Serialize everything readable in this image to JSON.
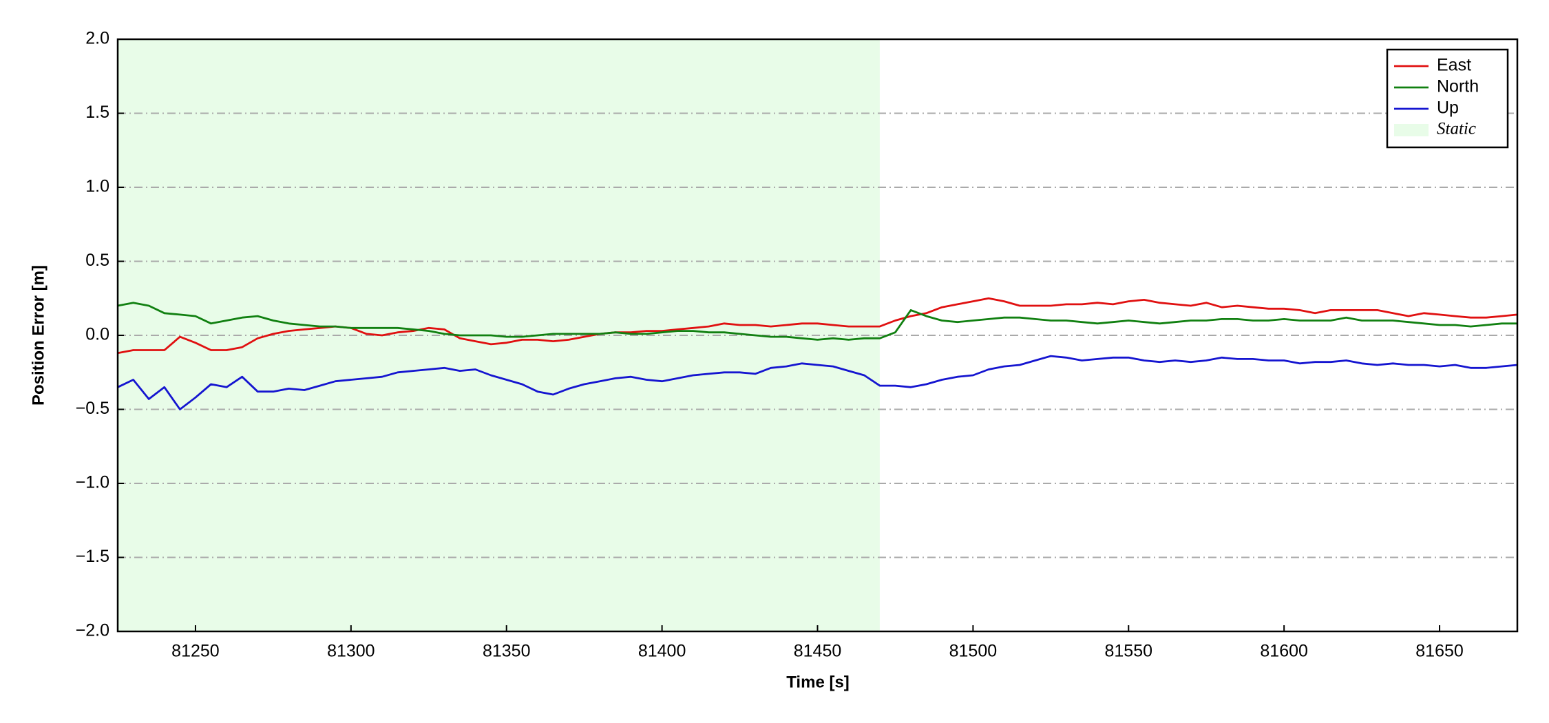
{
  "chart_data": {
    "type": "line",
    "x_label": "Time [s]",
    "y_label": "Position Error [m]",
    "xlim": [
      81225,
      81675
    ],
    "xticks": [
      81250,
      81300,
      81350,
      81400,
      81450,
      81500,
      81550,
      81600,
      81650
    ],
    "ylim": [
      -2,
      2
    ],
    "yticks": [
      {
        "value": -2,
        "label": "−2.0"
      },
      {
        "value": -1.5,
        "label": "−1.5"
      },
      {
        "value": -1,
        "label": "−1.0"
      },
      {
        "value": -0.5,
        "label": "−0.5"
      },
      {
        "value": 0,
        "label": "0.0"
      },
      0.5,
      {
        "value": 1,
        "label": "1.0"
      },
      1.5,
      {
        "value": 2,
        "label": "2.0"
      }
    ],
    "grid": true,
    "legend": "upper right",
    "shaded_region": {
      "name": "Static",
      "color": "#e8fce8",
      "xrange": [
        81225,
        81470
      ]
    },
    "x": [
      81225,
      81230,
      81235,
      81240,
      81245,
      81250,
      81255,
      81260,
      81265,
      81270,
      81275,
      81280,
      81285,
      81290,
      81295,
      81300,
      81305,
      81310,
      81315,
      81320,
      81325,
      81330,
      81335,
      81340,
      81345,
      81350,
      81355,
      81360,
      81365,
      81370,
      81375,
      81380,
      81385,
      81390,
      81395,
      81400,
      81405,
      81410,
      81415,
      81420,
      81425,
      81430,
      81435,
      81440,
      81445,
      81450,
      81455,
      81460,
      81465,
      81470,
      81475,
      81480,
      81485,
      81490,
      81495,
      81500,
      81505,
      81510,
      81515,
      81520,
      81525,
      81530,
      81535,
      81540,
      81545,
      81550,
      81555,
      81560,
      81565,
      81570,
      81575,
      81580,
      81585,
      81590,
      81595,
      81600,
      81605,
      81610,
      81615,
      81620,
      81625,
      81630,
      81635,
      81640,
      81645,
      81650,
      81655,
      81660,
      81665,
      81670,
      81675
    ],
    "series": [
      {
        "name": "East",
        "color": "#e01010",
        "values": [
          -0.12,
          -0.1,
          -0.1,
          -0.1,
          -0.01,
          -0.05,
          -0.1,
          -0.1,
          -0.08,
          -0.02,
          0.01,
          0.03,
          0.04,
          0.05,
          0.06,
          0.05,
          0.01,
          0.0,
          0.02,
          0.03,
          0.05,
          0.04,
          -0.02,
          -0.04,
          -0.06,
          -0.05,
          -0.03,
          -0.03,
          -0.04,
          -0.03,
          -0.01,
          0.01,
          0.02,
          0.02,
          0.03,
          0.03,
          0.04,
          0.05,
          0.06,
          0.08,
          0.07,
          0.07,
          0.06,
          0.07,
          0.08,
          0.08,
          0.07,
          0.06,
          0.06,
          0.06,
          0.1,
          0.13,
          0.15,
          0.19,
          0.21,
          0.23,
          0.25,
          0.23,
          0.2,
          0.2,
          0.2,
          0.21,
          0.21,
          0.22,
          0.21,
          0.23,
          0.24,
          0.22,
          0.21,
          0.2,
          0.22,
          0.19,
          0.2,
          0.19,
          0.18,
          0.18,
          0.17,
          0.15,
          0.17,
          0.17,
          0.17,
          0.17,
          0.15,
          0.13,
          0.15,
          0.14,
          0.13,
          0.12,
          0.12,
          0.13,
          0.14
        ]
      },
      {
        "name": "North",
        "color": "#118011",
        "values": [
          0.2,
          0.22,
          0.2,
          0.15,
          0.14,
          0.13,
          0.08,
          0.1,
          0.12,
          0.13,
          0.1,
          0.08,
          0.07,
          0.06,
          0.06,
          0.05,
          0.05,
          0.05,
          0.05,
          0.04,
          0.03,
          0.01,
          0.0,
          0.0,
          0.0,
          -0.01,
          -0.01,
          0.0,
          0.01,
          0.01,
          0.01,
          0.01,
          0.02,
          0.01,
          0.01,
          0.02,
          0.03,
          0.03,
          0.02,
          0.02,
          0.01,
          0.0,
          -0.01,
          -0.01,
          -0.02,
          -0.03,
          -0.02,
          -0.03,
          -0.02,
          -0.02,
          0.02,
          0.17,
          0.13,
          0.1,
          0.09,
          0.1,
          0.11,
          0.12,
          0.12,
          0.11,
          0.1,
          0.1,
          0.09,
          0.08,
          0.09,
          0.1,
          0.09,
          0.08,
          0.09,
          0.1,
          0.1,
          0.11,
          0.11,
          0.1,
          0.1,
          0.11,
          0.1,
          0.1,
          0.1,
          0.12,
          0.1,
          0.1,
          0.1,
          0.09,
          0.08,
          0.07,
          0.07,
          0.06,
          0.07,
          0.08,
          0.08
        ]
      },
      {
        "name": "Up",
        "color": "#1515d0",
        "values": [
          -0.35,
          -0.3,
          -0.43,
          -0.35,
          -0.5,
          -0.42,
          -0.33,
          -0.35,
          -0.28,
          -0.38,
          -0.38,
          -0.36,
          -0.37,
          -0.34,
          -0.31,
          -0.3,
          -0.29,
          -0.28,
          -0.25,
          -0.24,
          -0.23,
          -0.22,
          -0.24,
          -0.23,
          -0.27,
          -0.3,
          -0.33,
          -0.38,
          -0.4,
          -0.36,
          -0.33,
          -0.31,
          -0.29,
          -0.28,
          -0.3,
          -0.31,
          -0.29,
          -0.27,
          -0.26,
          -0.25,
          -0.25,
          -0.26,
          -0.22,
          -0.21,
          -0.19,
          -0.2,
          -0.21,
          -0.24,
          -0.27,
          -0.34,
          -0.34,
          -0.35,
          -0.33,
          -0.3,
          -0.28,
          -0.27,
          -0.23,
          -0.21,
          -0.2,
          -0.17,
          -0.14,
          -0.15,
          -0.17,
          -0.16,
          -0.15,
          -0.15,
          -0.17,
          -0.18,
          -0.17,
          -0.18,
          -0.17,
          -0.15,
          -0.16,
          -0.16,
          -0.17,
          -0.17,
          -0.19,
          -0.18,
          -0.18,
          -0.17,
          -0.19,
          -0.2,
          -0.19,
          -0.2,
          -0.2,
          -0.21,
          -0.2,
          -0.22,
          -0.22,
          -0.21,
          -0.2
        ]
      }
    ]
  }
}
